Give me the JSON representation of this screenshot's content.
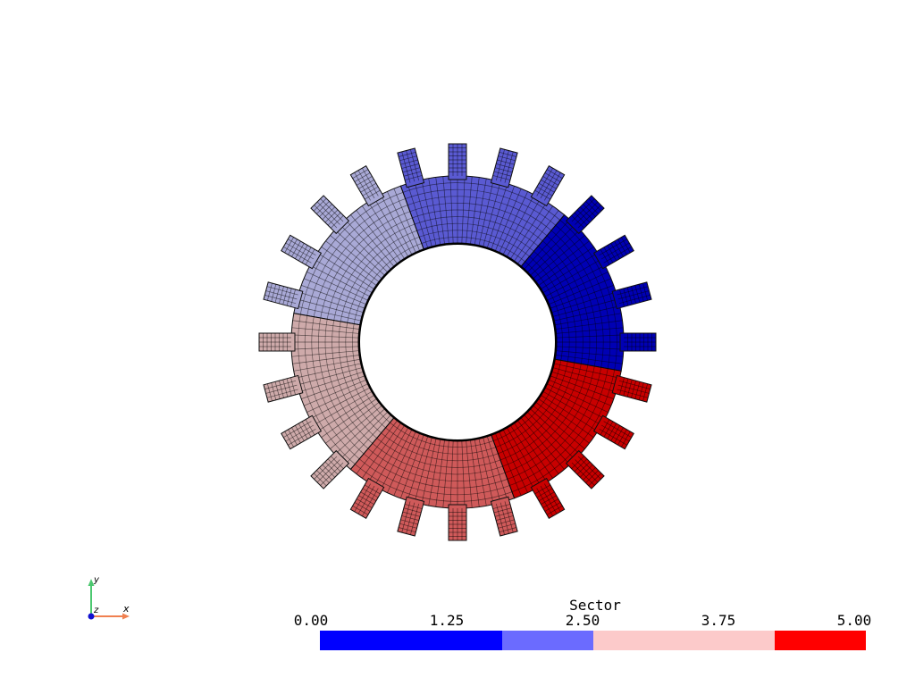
{
  "scene": {
    "title": "Sector",
    "mesh": {
      "sectors": 6,
      "teeth": 24,
      "sector_colors": [
        "#0000b4",
        "#5a5ad2",
        "#a9a9d6",
        "#ceaaaa",
        "#cf5a5a",
        "#c80000"
      ]
    }
  },
  "scalar_bar": {
    "title": "Sector",
    "ticks": [
      "0.00",
      "1.25",
      "2.50",
      "3.75",
      "5.00"
    ],
    "segments": [
      {
        "color": "#0000ff",
        "units": 2
      },
      {
        "color": "#6b6bff",
        "units": 1
      },
      {
        "color": "#fccaca",
        "units": 2
      },
      {
        "color": "#ff0000",
        "units": 1
      }
    ]
  },
  "axes": {
    "x_label": "x",
    "y_label": "y",
    "z_label": "z",
    "x_color": "#f08050",
    "y_color": "#4cc870",
    "z_color": "#1010d0"
  }
}
